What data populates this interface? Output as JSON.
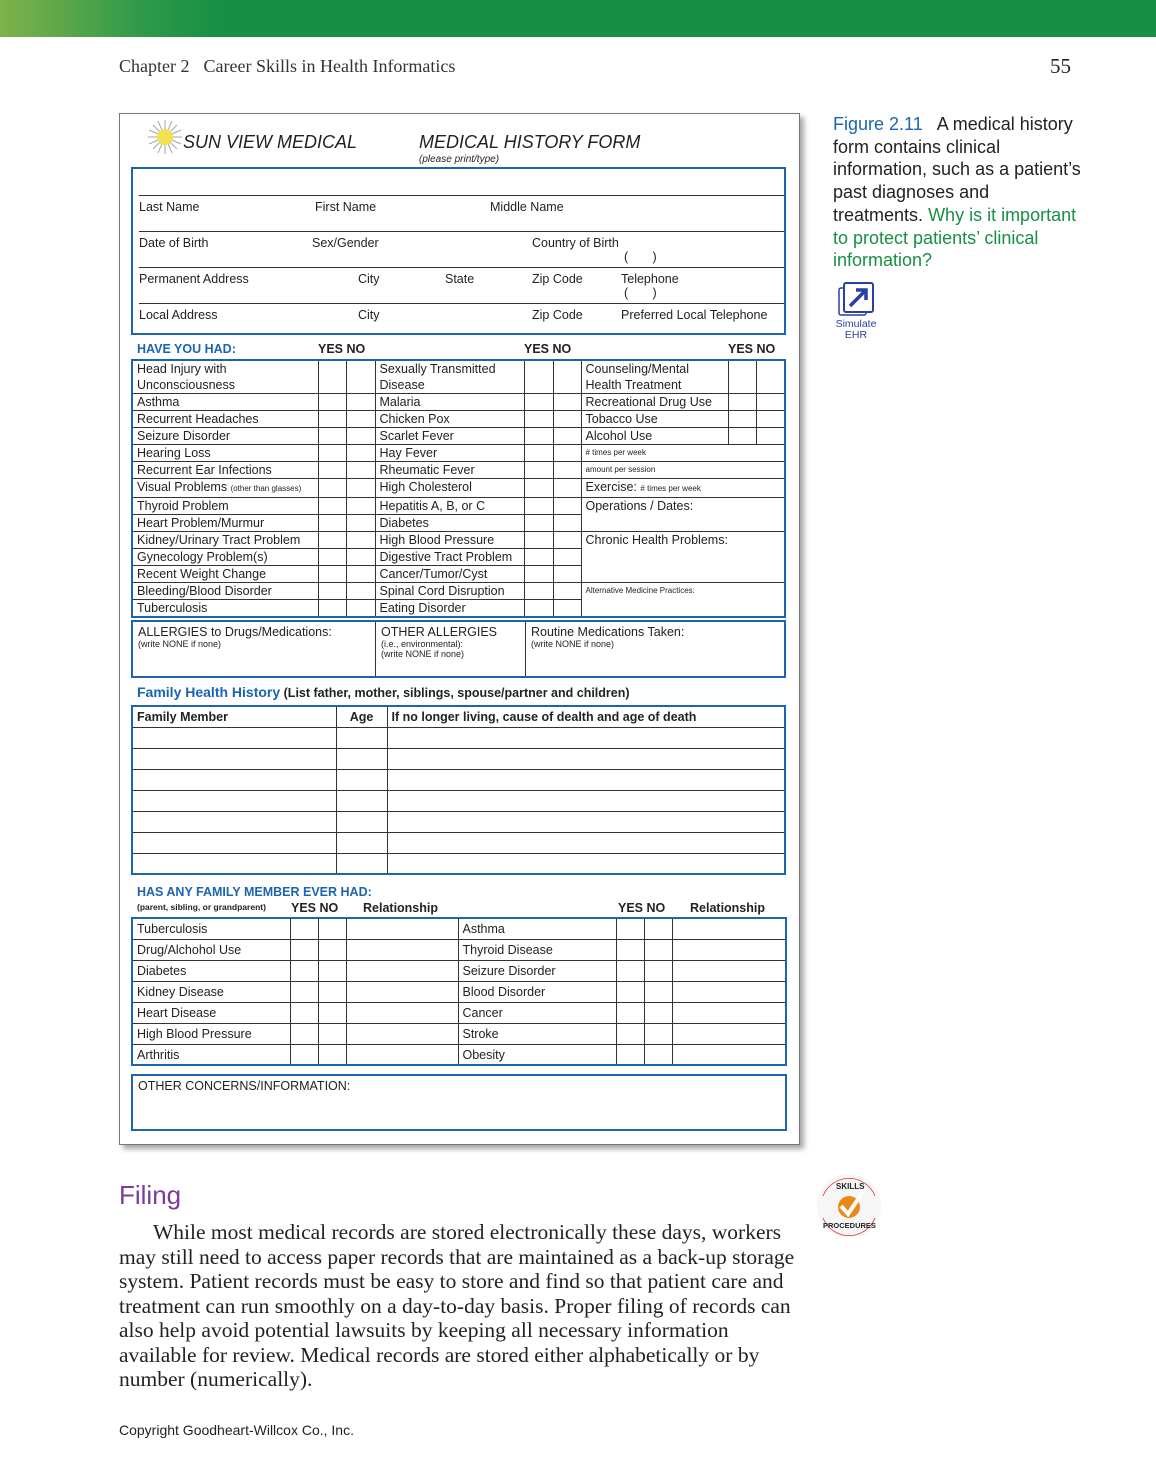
{
  "header": {
    "chapter": "Chapter 2",
    "title": "Career Skills in Health Informatics",
    "page_number": "55"
  },
  "form": {
    "brand": "SUN VIEW MEDICAL",
    "title": "MEDICAL HISTORY FORM",
    "subtitle": "(please print/type)",
    "id_fields": {
      "last_name": "Last Name",
      "first_name": "First Name",
      "middle_name": "Middle Name",
      "dob": "Date of Birth",
      "sex": "Sex/Gender",
      "country": "Country of Birth",
      "paren": "(       )",
      "perm_address": "Permanent Address",
      "city": "City",
      "state": "State",
      "zip": "Zip Code",
      "telephone": "Telephone",
      "local_address": "Local Address",
      "pref_tel": "Preferred Local Telephone"
    },
    "have_you_had": {
      "heading": "HAVE YOU HAD:",
      "yes_no": "YES NO",
      "col1": [
        "Head Injury with\nUnconsciousness",
        "Asthma",
        "Recurrent Headaches",
        "Seizure Disorder",
        "Hearing Loss",
        "Recurrent Ear Infections",
        "Visual Problems",
        "Thyroid Problem",
        "Heart Problem/Murmur",
        "Kidney/Urinary Tract Problem",
        "Gynecology Problem(s)",
        "Recent Weight Change",
        "Bleeding/Blood Disorder",
        "Tuberculosis"
      ],
      "visual_note": "(other than glasses)",
      "col2": [
        "Sexually Transmitted\nDisease",
        "Malaria",
        "Chicken Pox",
        "Scarlet Fever",
        "Hay Fever",
        "Rheumatic Fever",
        "High Cholesterol",
        "Hepatitis A, B, or C",
        "Diabetes",
        "High Blood Pressure",
        "Digestive Tract Problem",
        "Cancer/Tumor/Cyst",
        "Spinal Cord Disruption",
        "Eating Disorder"
      ],
      "col3": [
        "Counseling/Mental\nHealth Treatment",
        "Recreational Drug Use",
        "Tobacco Use",
        "Alcohol Use"
      ],
      "times_per_week": "# times per week",
      "amount_per_session": "amount per session",
      "exercise": "Exercise:",
      "exercise_note": "# times per week",
      "operations": "Operations / Dates:",
      "chronic": "Chronic Health Problems:",
      "alternative": "Alternative Medicine Practices:"
    },
    "allergies": {
      "drugs": "ALLERGIES to Drugs/Medications:",
      "drugs_note": "(write NONE if none)",
      "other": "OTHER ALLERGIES",
      "other_note1": "(i.e., environmental):",
      "other_note2": "(write NONE if none)",
      "routine": "Routine Medications Taken:",
      "routine_note": "(write NONE if none)"
    },
    "family_history": {
      "heading": "Family Health History",
      "note": "(List father, mother, siblings, spouse/partner and children)",
      "columns": [
        "Family Member",
        "Age",
        "If no longer living, cause of dealth and age of death"
      ],
      "empty_rows": 7
    },
    "family_ever": {
      "heading": "HAS ANY FAMILY MEMBER EVER HAD:",
      "note": "(parent, sibling, or grandparent)",
      "yes_no": "YES NO",
      "relationship": "Relationship",
      "left": [
        "Tuberculosis",
        "Drug/Alchohol Use",
        "Diabetes",
        "Kidney Disease",
        "Heart Disease",
        "High Blood Pressure",
        "Arthritis"
      ],
      "right": [
        "Asthma",
        "Thyroid Disease",
        "Seizure Disorder",
        "Blood Disorder",
        "Cancer",
        "Stroke",
        "Obesity"
      ]
    },
    "other_concerns": "OTHER CONCERNS/INFORMATION:"
  },
  "caption": {
    "figure": "Figure 2.11",
    "text": "A medical history form contains clinical information, such as a patient’s past diagnoses and treatments.",
    "question": "Why is it important to protect patients’ clinical information?"
  },
  "simulate": {
    "label": "Simulate EHR",
    "icon": "external-link-arrow-icon"
  },
  "skills_badge": {
    "top": "SKILLS",
    "bottom": "PROCEDURES"
  },
  "section": {
    "heading": "Filing",
    "body": "While most medical records are stored electronically these days, workers may still need to access paper records that are maintained as a back-up storage system. Patient records must be easy to store and find so that patient care and treatment can run smoothly on a day-to-day basis. Proper filing of records can also help avoid potential lawsuits by keeping all necessary information available for review. Medical records are stored either alphabetically or by number (numerically)."
  },
  "footer": {
    "copyright": "Copyright Goodheart-Willcox Co., Inc."
  },
  "colors": {
    "accent_blue": "#1a64b0",
    "green_bar": "#178f45",
    "heading_purple": "#7b3aa0"
  }
}
